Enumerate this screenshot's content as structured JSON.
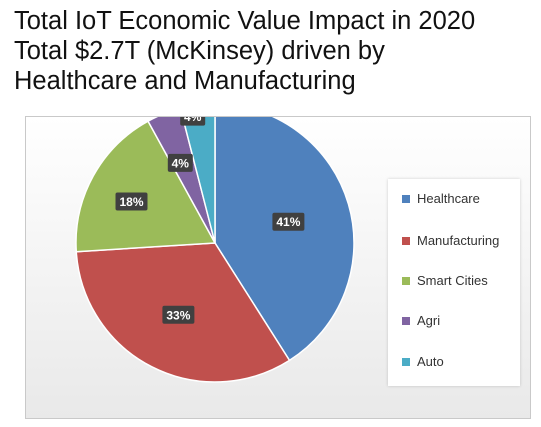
{
  "header": {
    "title_lines": [
      "Total IoT Economic Value Impact in 2020",
      "Total $2.7T (McKinsey) driven by",
      "Healthcare and Manufacturing"
    ]
  },
  "chart_data": {
    "type": "pie",
    "title": "",
    "unit": "%",
    "categories": [
      "Healthcare",
      "Manufacturing",
      "Smart Cities",
      "Agri",
      "Auto"
    ],
    "values": [
      41,
      33,
      18,
      4,
      4
    ],
    "data_labels": [
      "41%",
      "33%",
      "18%",
      "4%",
      "4%"
    ],
    "colors": [
      "#4f81bd",
      "#c0504d",
      "#9bbb59",
      "#8064a2",
      "#4bacc6"
    ],
    "start_angle": "12 o'clock",
    "direction": "clockwise",
    "legend_position": "right"
  }
}
